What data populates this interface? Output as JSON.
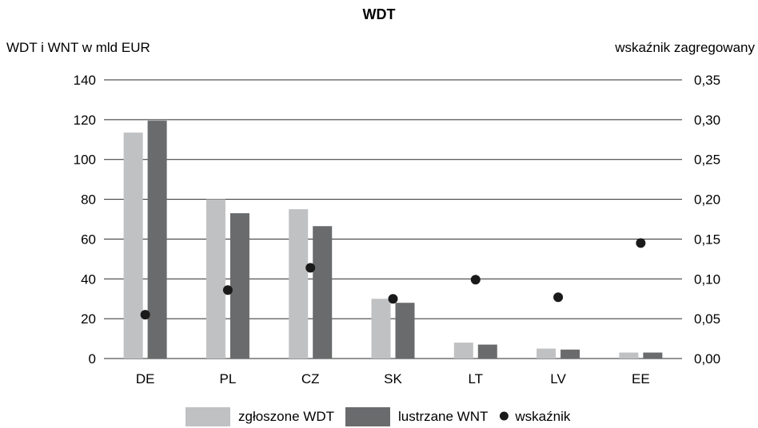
{
  "chart_data": {
    "type": "bar",
    "title": "WDT",
    "ylabel_left": "WDT i WNT w mld EUR",
    "ylabel_right": "wskaźnik zagregowany",
    "categories": [
      "DE",
      "PL",
      "CZ",
      "SK",
      "LT",
      "LV",
      "EE"
    ],
    "ylim_left": [
      0,
      140
    ],
    "ylim_right": [
      0,
      0.35
    ],
    "yticks_left": [
      "0",
      "20",
      "40",
      "60",
      "80",
      "100",
      "120",
      "140"
    ],
    "yticks_right": [
      "0,00",
      "0,05",
      "0,10",
      "0,15",
      "0,20",
      "0,25",
      "0,30",
      "0,35"
    ],
    "grid": true,
    "legend_position": "bottom",
    "series": [
      {
        "name": "zgłoszone WDT",
        "kind": "bar",
        "axis": "left",
        "color": "#c0c1c3",
        "values": [
          113.5,
          80,
          75,
          30,
          8,
          5,
          3
        ]
      },
      {
        "name": "lustrzane WNT",
        "kind": "bar",
        "axis": "left",
        "color": "#6a6b6d",
        "values": [
          119.5,
          73,
          66.5,
          28,
          7,
          4.5,
          3
        ]
      },
      {
        "name": "wskaźnik",
        "kind": "point",
        "axis": "right",
        "color": "#1a1a1a",
        "values": [
          0.055,
          0.086,
          0.114,
          0.075,
          0.099,
          0.077,
          0.145
        ]
      }
    ]
  }
}
